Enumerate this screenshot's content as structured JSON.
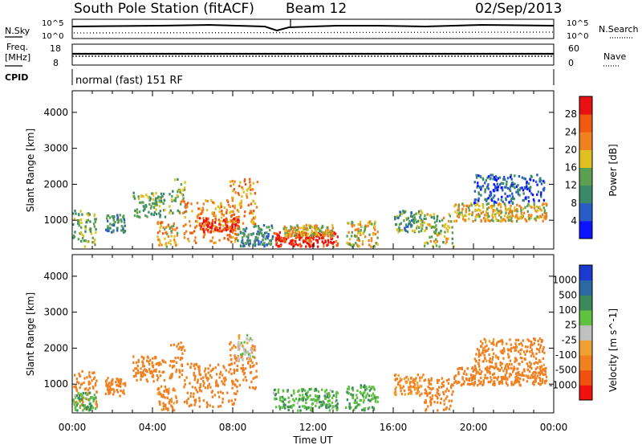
{
  "header": {
    "station": "South Pole Station (fitACF)",
    "beam": "Beam 12",
    "date": "02/Sep/2013"
  },
  "panel_labels": {
    "nsky": "N.Sky",
    "nsky_top": "10^5",
    "nsky_bottom": "10^0",
    "nsearch": "N.Search",
    "nsearch_top": "10^5",
    "nsearch_bottom": "10^0",
    "freq": "Freq.",
    "freq_unit": "[MHz]",
    "freq_top": "18",
    "freq_bottom": "8",
    "nave": "Nave",
    "nave_top": "60",
    "nave_bottom": "0",
    "cpid": "CPID",
    "cpid_text": "normal (fast) 151 RF"
  },
  "colors": {
    "power_scale": [
      "#0a14ff",
      "#2a5cc8",
      "#3a8a6a",
      "#5aa050",
      "#e0c020",
      "#f08020",
      "#f05a10",
      "#e81010"
    ],
    "velocity_scale": [
      "#f01010",
      "#f05010",
      "#f08020",
      "#f0a030",
      "#c0c0c0",
      "#60c040",
      "#3a8a5a",
      "#2a6aa0",
      "#1a3ad0"
    ]
  },
  "chart_data": [
    {
      "type": "heatmap",
      "panel": "power",
      "ylabel": "Slant Range [km]",
      "y_ticks": [
        1000,
        2000,
        3000,
        4000
      ],
      "ylim": [
        200,
        4600
      ],
      "x_ticks": [
        "00:00",
        "04:00",
        "08:00",
        "12:00",
        "16:00",
        "20:00",
        "00:00"
      ],
      "xlim_hours": [
        0,
        24
      ],
      "colorbar_label": "Power [dB]",
      "colorbar_ticks": [
        "4",
        "8",
        "12",
        "16",
        "20",
        "24",
        "28"
      ],
      "colorbar_range": [
        0,
        32
      ],
      "regions": [
        {
          "t": [
            0,
            1.2
          ],
          "r": [
            300,
            1300
          ],
          "v": 14
        },
        {
          "t": [
            1.6,
            2.6
          ],
          "r": [
            700,
            1200
          ],
          "v": 10
        },
        {
          "t": [
            3.0,
            4.6
          ],
          "r": [
            1100,
            1800
          ],
          "v": 14
        },
        {
          "t": [
            4.2,
            5.2
          ],
          "r": [
            300,
            1000
          ],
          "v": 20
        },
        {
          "t": [
            4.8,
            5.6
          ],
          "r": [
            1200,
            2200
          ],
          "v": 16
        },
        {
          "t": [
            5.5,
            8.2
          ],
          "r": [
            400,
            1600
          ],
          "v": 22
        },
        {
          "t": [
            6.3,
            8.3
          ],
          "r": [
            700,
            1100
          ],
          "v": 28
        },
        {
          "t": [
            7.8,
            9.2
          ],
          "r": [
            900,
            2200
          ],
          "v": 22
        },
        {
          "t": [
            8.2,
            10.0
          ],
          "r": [
            300,
            900
          ],
          "v": 10
        },
        {
          "t": [
            10.0,
            13.2
          ],
          "r": [
            300,
            700
          ],
          "v": 29
        },
        {
          "t": [
            10.5,
            13.0
          ],
          "r": [
            600,
            900
          ],
          "v": 18
        },
        {
          "t": [
            13.6,
            15.2
          ],
          "r": [
            300,
            1000
          ],
          "v": 18
        },
        {
          "t": [
            16.0,
            17.5
          ],
          "r": [
            700,
            1300
          ],
          "v": 12
        },
        {
          "t": [
            17.5,
            19.0
          ],
          "r": [
            300,
            1200
          ],
          "v": 16
        },
        {
          "t": [
            19.0,
            23.6
          ],
          "r": [
            1000,
            1500
          ],
          "v": 18
        },
        {
          "t": [
            20.0,
            23.5
          ],
          "r": [
            1500,
            2300
          ],
          "v": 6
        }
      ]
    },
    {
      "type": "heatmap",
      "panel": "velocity",
      "ylabel": "Slant Range [km]",
      "y_ticks": [
        1000,
        2000,
        3000,
        4000
      ],
      "ylim": [
        200,
        4600
      ],
      "x_ticks": [
        "00:00",
        "04:00",
        "08:00",
        "12:00",
        "16:00",
        "20:00",
        "00:00"
      ],
      "xlim_hours": [
        0,
        24
      ],
      "xlabel": "Time UT",
      "colorbar_label": "Velocity [m s^-1]",
      "colorbar_ticks": [
        "-1000",
        "-500",
        "-100",
        "-25",
        "25",
        "100",
        "500",
        "1000"
      ],
      "regions": [
        {
          "t": [
            0,
            1.2
          ],
          "r": [
            300,
            1400
          ],
          "v": -200
        },
        {
          "t": [
            0,
            1.2
          ],
          "r": [
            300,
            800
          ],
          "v": 80
        },
        {
          "t": [
            1.6,
            2.6
          ],
          "r": [
            700,
            1200
          ],
          "v": -200
        },
        {
          "t": [
            3.0,
            4.6
          ],
          "r": [
            1100,
            1800
          ],
          "v": -300
        },
        {
          "t": [
            4.2,
            5.2
          ],
          "r": [
            300,
            1000
          ],
          "v": -150
        },
        {
          "t": [
            4.8,
            5.6
          ],
          "r": [
            1200,
            2200
          ],
          "v": -250
        },
        {
          "t": [
            5.5,
            8.2
          ],
          "r": [
            400,
            1600
          ],
          "v": -300
        },
        {
          "t": [
            7.8,
            9.2
          ],
          "r": [
            900,
            2200
          ],
          "v": -200
        },
        {
          "t": [
            8.2,
            9.0
          ],
          "r": [
            1700,
            2400
          ],
          "v": 0
        },
        {
          "t": [
            10.0,
            13.2
          ],
          "r": [
            300,
            900
          ],
          "v": 80
        },
        {
          "t": [
            13.6,
            15.2
          ],
          "r": [
            300,
            1000
          ],
          "v": 90
        },
        {
          "t": [
            16.0,
            17.5
          ],
          "r": [
            700,
            1300
          ],
          "v": -100
        },
        {
          "t": [
            17.5,
            19.0
          ],
          "r": [
            300,
            1200
          ],
          "v": -200
        },
        {
          "t": [
            19.0,
            23.6
          ],
          "r": [
            1000,
            1500
          ],
          "v": -300
        },
        {
          "t": [
            20.0,
            23.5
          ],
          "r": [
            1500,
            2300
          ],
          "v": -150
        }
      ]
    }
  ]
}
